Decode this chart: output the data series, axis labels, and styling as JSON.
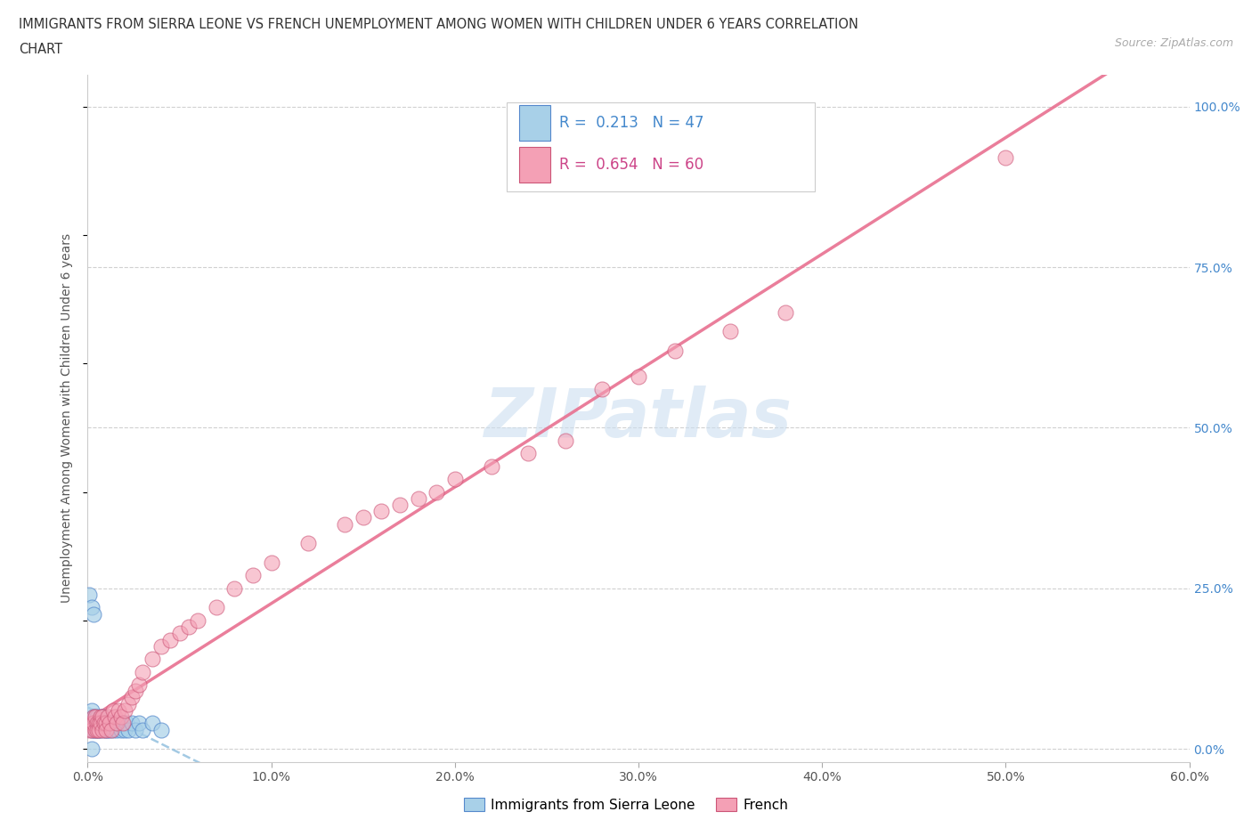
{
  "title_line1": "IMMIGRANTS FROM SIERRA LEONE VS FRENCH UNEMPLOYMENT AMONG WOMEN WITH CHILDREN UNDER 6 YEARS CORRELATION",
  "title_line2": "CHART",
  "source_text": "Source: ZipAtlas.com",
  "ylabel": "Unemployment Among Women with Children Under 6 years",
  "r1": 0.213,
  "n1": 47,
  "r2": 0.654,
  "n2": 60,
  "xlim": [
    0.0,
    0.6
  ],
  "ylim": [
    -0.02,
    1.05
  ],
  "xtick_labels": [
    "0.0%",
    "",
    "10.0%",
    "",
    "20.0%",
    "",
    "30.0%",
    "",
    "40.0%",
    "",
    "50.0%",
    "",
    "60.0%"
  ],
  "ytick_labels_right": [
    "0.0%",
    "25.0%",
    "50.0%",
    "75.0%",
    "100.0%"
  ],
  "ytick_values_right": [
    0.0,
    0.25,
    0.5,
    0.75,
    1.0
  ],
  "xtick_values": [
    0.0,
    0.05,
    0.1,
    0.15,
    0.2,
    0.25,
    0.3,
    0.35,
    0.4,
    0.45,
    0.5,
    0.55,
    0.6
  ],
  "color_blue": "#a8d0e8",
  "color_pink": "#f4a0b5",
  "color_blue_line": "#99c4e0",
  "color_pink_line": "#e87090",
  "color_blue_dark": "#5588cc",
  "color_pink_dark": "#cc5577",
  "background_color": "#ffffff",
  "grid_color": "#d0d0d0",
  "watermark_color": "#ccdff0",
  "scatter_blue_x": [
    0.001,
    0.002,
    0.002,
    0.003,
    0.003,
    0.003,
    0.004,
    0.004,
    0.004,
    0.005,
    0.005,
    0.005,
    0.006,
    0.006,
    0.007,
    0.007,
    0.007,
    0.008,
    0.008,
    0.009,
    0.009,
    0.01,
    0.01,
    0.011,
    0.011,
    0.012,
    0.012,
    0.013,
    0.014,
    0.015,
    0.016,
    0.017,
    0.018,
    0.019,
    0.02,
    0.021,
    0.022,
    0.024,
    0.026,
    0.028,
    0.03,
    0.035,
    0.04,
    0.001,
    0.002,
    0.003,
    0.002
  ],
  "scatter_blue_y": [
    0.04,
    0.06,
    0.03,
    0.05,
    0.04,
    0.03,
    0.05,
    0.04,
    0.03,
    0.05,
    0.04,
    0.03,
    0.04,
    0.03,
    0.05,
    0.04,
    0.03,
    0.05,
    0.04,
    0.04,
    0.03,
    0.04,
    0.03,
    0.04,
    0.03,
    0.04,
    0.03,
    0.04,
    0.03,
    0.04,
    0.03,
    0.04,
    0.03,
    0.04,
    0.03,
    0.04,
    0.03,
    0.04,
    0.03,
    0.04,
    0.03,
    0.04,
    0.03,
    0.24,
    0.22,
    0.21,
    0.0
  ],
  "scatter_pink_x": [
    0.001,
    0.002,
    0.002,
    0.003,
    0.003,
    0.004,
    0.004,
    0.005,
    0.005,
    0.006,
    0.006,
    0.007,
    0.007,
    0.008,
    0.008,
    0.009,
    0.01,
    0.01,
    0.011,
    0.012,
    0.013,
    0.014,
    0.015,
    0.016,
    0.017,
    0.018,
    0.019,
    0.02,
    0.022,
    0.024,
    0.026,
    0.028,
    0.03,
    0.035,
    0.04,
    0.045,
    0.05,
    0.055,
    0.06,
    0.07,
    0.08,
    0.09,
    0.1,
    0.12,
    0.14,
    0.15,
    0.16,
    0.17,
    0.18,
    0.19,
    0.2,
    0.22,
    0.24,
    0.26,
    0.28,
    0.3,
    0.32,
    0.35,
    0.38,
    0.5
  ],
  "scatter_pink_y": [
    0.03,
    0.04,
    0.03,
    0.05,
    0.04,
    0.03,
    0.05,
    0.04,
    0.03,
    0.04,
    0.03,
    0.05,
    0.04,
    0.03,
    0.05,
    0.04,
    0.04,
    0.03,
    0.05,
    0.04,
    0.03,
    0.06,
    0.05,
    0.04,
    0.06,
    0.05,
    0.04,
    0.06,
    0.07,
    0.08,
    0.09,
    0.1,
    0.12,
    0.14,
    0.16,
    0.17,
    0.18,
    0.19,
    0.2,
    0.22,
    0.25,
    0.27,
    0.29,
    0.32,
    0.35,
    0.36,
    0.37,
    0.38,
    0.39,
    0.4,
    0.42,
    0.44,
    0.46,
    0.48,
    0.56,
    0.58,
    0.62,
    0.65,
    0.68,
    0.92
  ]
}
